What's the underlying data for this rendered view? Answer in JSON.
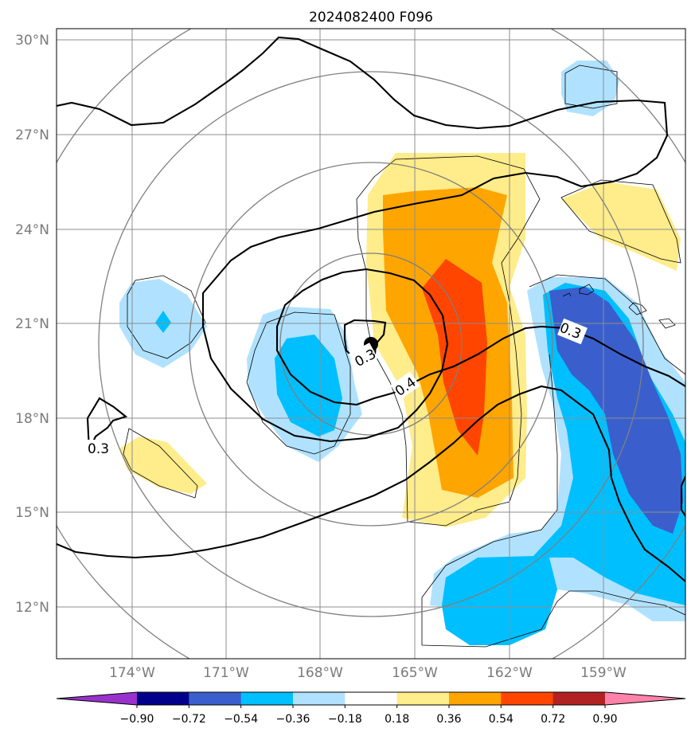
{
  "title": "2024082400 F096",
  "map": {
    "lat_labels": [
      "30°N",
      "27°N",
      "24°N",
      "21°N",
      "18°N",
      "15°N",
      "12°N"
    ],
    "lon_labels": [
      "174°W",
      "171°W",
      "168°W",
      "165°W",
      "162°W",
      "159°W"
    ],
    "contour_labels": [
      "0.3",
      "0.3",
      "0.4",
      "0.3"
    ],
    "storm_center": {
      "lat": 20.4,
      "lon": "166.5°W"
    }
  },
  "colorbar": {
    "ticks": [
      "−0.90",
      "−0.72",
      "−0.54",
      "−0.36",
      "−0.18",
      "0.18",
      "0.36",
      "0.54",
      "0.72",
      "0.90"
    ],
    "colors": [
      "#9932cc",
      "#00008b",
      "#3a5fcd",
      "#00bfff",
      "#b0e2ff",
      "#ffffff",
      "#ffec8b",
      "#ffa500",
      "#ff4500",
      "#b22222",
      "#ff82ab"
    ]
  }
}
